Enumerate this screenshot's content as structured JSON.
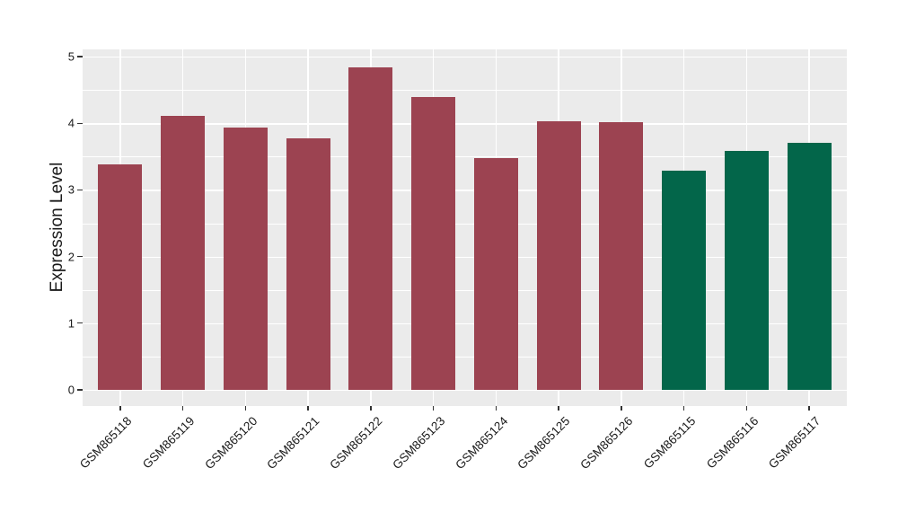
{
  "chart_data": {
    "type": "bar",
    "title": "",
    "xlabel": "",
    "ylabel": "Expression Level",
    "categories": [
      "GSM865118",
      "GSM865119",
      "GSM865120",
      "GSM865121",
      "GSM865122",
      "GSM865123",
      "GSM865124",
      "GSM865125",
      "GSM865126",
      "GSM865115",
      "GSM865116",
      "GSM865117"
    ],
    "values": [
      3.38,
      4.11,
      3.93,
      3.78,
      4.84,
      4.4,
      3.48,
      4.03,
      4.01,
      3.29,
      3.59,
      3.7
    ],
    "bar_groups": [
      "maroon",
      "maroon",
      "maroon",
      "maroon",
      "maroon",
      "maroon",
      "maroon",
      "maroon",
      "maroon",
      "green",
      "green",
      "green"
    ],
    "group_colors": {
      "maroon": "#9C4351",
      "green": "#03664A"
    },
    "y_ticks": [
      0,
      1,
      2,
      3,
      4,
      5
    ],
    "y_minor_ticks": [
      0.5,
      1.5,
      2.5,
      3.5,
      4.5
    ],
    "ylim": [
      -0.24,
      5.08
    ],
    "bar_width_ratio": 0.7,
    "grid": true,
    "legend_position": "none",
    "colors": {
      "panel_background": "#EBEBEB",
      "gridline": "#FFFFFF",
      "tick_mark": "#333333",
      "text": "#1A1A1A",
      "page_background": "#FFFFFF"
    }
  }
}
